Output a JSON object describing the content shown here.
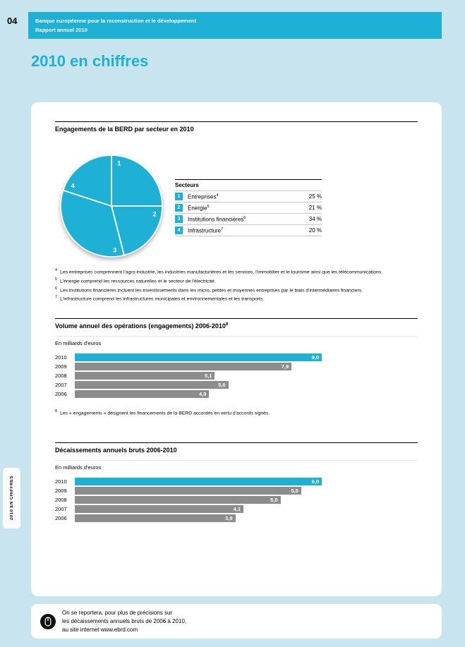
{
  "page": {
    "number": "04",
    "header_line1": "Banque européenne pour la reconstruction et le développement",
    "header_line2": "Rapport annuel 2010",
    "title": "2010 en chiffres",
    "sidebar_tab": "2010 EN CHIFFRES"
  },
  "colors": {
    "accent": "#1fb0d5",
    "bar_gray": "#8c8c8c",
    "background": "#c8e4ee",
    "card": "#ffffff"
  },
  "chart_data": [
    {
      "type": "pie",
      "title": "Engagements de la BERD par secteur en 2010",
      "legend_title": "Secteurs",
      "slice_numbers": [
        "1",
        "2",
        "3",
        "4"
      ],
      "labels": [
        "Entreprises",
        "Énergie",
        "Institutions financières",
        "Infrastructure"
      ],
      "label_sups": [
        "4",
        "5",
        "6",
        "7"
      ],
      "values": [
        25,
        21,
        34,
        20
      ],
      "value_labels": [
        "25 %",
        "21 %",
        "34 %",
        "20 %"
      ]
    },
    {
      "type": "bar",
      "title": "Volume annuel des opérations (engagements) 2006-2010",
      "title_sup": "8",
      "unit": "En milliards d'euros",
      "categories": [
        "2010",
        "2009",
        "2008",
        "2007",
        "2006"
      ],
      "values": [
        9.0,
        7.9,
        5.1,
        5.6,
        4.9
      ],
      "value_labels": [
        "9,0",
        "7,9",
        "5,1",
        "5,6",
        "4,9"
      ],
      "highlight_index": 0
    },
    {
      "type": "bar",
      "title": "Décaissements annuels bruts 2006-2010",
      "unit": "En milliards d'euros",
      "categories": [
        "2010",
        "2009",
        "2008",
        "2007",
        "2006"
      ],
      "values": [
        6.0,
        5.5,
        5.0,
        4.1,
        3.9
      ],
      "value_labels": [
        "6,0",
        "5,5",
        "5,0",
        "4,1",
        "3,9"
      ],
      "highlight_index": 0
    }
  ],
  "footnotes": {
    "sector": [
      {
        "sup": "4",
        "text": "Les entreprises comprennent l'agro-industrie, les industries manufacturières et les services, l'immobilier et le tourisme ainsi que les télécommunications."
      },
      {
        "sup": "5",
        "text": "L'énergie comprend les ressources naturelles et le secteur de l'électricité."
      },
      {
        "sup": "6",
        "text": "Les institutions financières incluent les investissements dans les micro, petites et moyennes entreprises par le biais d'intermédiaires financiers."
      },
      {
        "sup": "7",
        "text": "L'infrastructure comprend les infrastructures municipales et environnementales et les transports."
      }
    ],
    "engagements": {
      "sup": "8",
      "text": "Les « engagements » désignent les financements de la BERD accordés en vertu d'accords signés."
    }
  },
  "footer": {
    "icon": "mouse-icon",
    "lines": [
      "On se reportera, pour plus de précisions sur",
      "les décaissements annuels bruts de 2006 à 2010,",
      "au site internet www.ebrd.com"
    ]
  }
}
